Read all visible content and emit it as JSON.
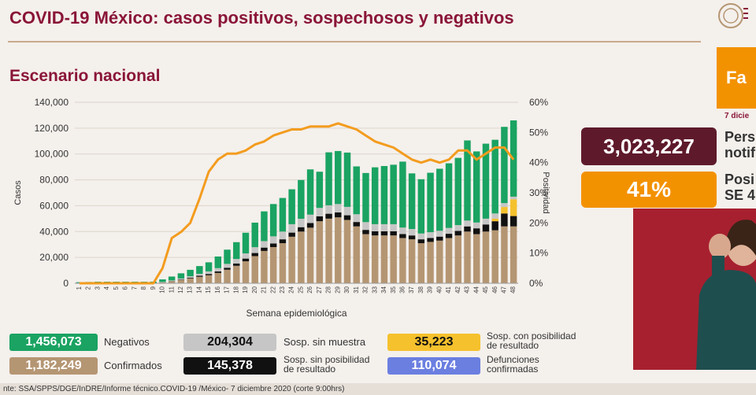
{
  "header": {
    "title": "COVID-19 México: casos positivos, sospechosos y negativos",
    "subtitle": "Escenario nacional"
  },
  "side": {
    "tab_text": "Fa",
    "date_text": "7 dicie",
    "stat_people_value": "3,023,227",
    "stat_people_label_1": "Pers",
    "stat_people_label_2": "notif",
    "stat_positivity_value": "41%",
    "stat_positivity_label_1": "Posi",
    "stat_positivity_label_2": "SE 4"
  },
  "legend": {
    "negativos_value": "1,456,073",
    "negativos_label": "Negativos",
    "confirmados_value": "1,182,249",
    "confirmados_label": "Confirmados",
    "sin_muestra_value": "204,304",
    "sin_muestra_label": "Sosp. sin muestra",
    "sin_posibilidad_value": "145,378",
    "sin_posibilidad_label_1": "Sosp. sin posibilidad",
    "sin_posibilidad_label_2": "de resultado",
    "con_posibilidad_value": "35,223",
    "con_posibilidad_label_1": "Sosp. con posibilidad",
    "con_posibilidad_label_2": "de resultado",
    "defunciones_value": "110,074",
    "defunciones_label_1": "Defunciones",
    "defunciones_label_2": "confirmadas"
  },
  "footer": {
    "source": "nte: SSA/SPPS/DGE/InDRE/Informe técnico.COVID-19 /México- 7 diciembre 2020 (corte 9:00hrs)"
  },
  "colors": {
    "negativos": "#1aa362",
    "confirmados": "#b59673",
    "sin_muestra": "#c6c6c6",
    "sin_posibilidad": "#111111",
    "con_posibilidad": "#f5c12d",
    "defunciones": "#6b7fe0",
    "positividad": "#f39c1e"
  },
  "chart_data": {
    "type": "bar",
    "xlabel": "Semana epidemiológica",
    "ylabel": "Casos",
    "y2label": "Positividad",
    "ylim": [
      0,
      140000
    ],
    "y2lim": [
      0,
      60
    ],
    "yticks": [
      "0",
      "20,000",
      "40,000",
      "60,000",
      "80,000",
      "100,000",
      "120,000",
      "140,000"
    ],
    "y2ticks": [
      "0%",
      "10%",
      "20%",
      "30%",
      "40%",
      "50%",
      "60%"
    ],
    "categories": [
      "1",
      "2",
      "3",
      "4",
      "5",
      "6",
      "7",
      "8",
      "9",
      "10",
      "11",
      "12",
      "13",
      "14",
      "15",
      "16",
      "17",
      "18",
      "19",
      "20",
      "21",
      "22",
      "23",
      "24",
      "25",
      "26",
      "27",
      "28",
      "29",
      "30",
      "31",
      "32",
      "33",
      "34",
      "35",
      "36",
      "37",
      "38",
      "39",
      "40",
      "41",
      "42",
      "43",
      "44",
      "45",
      "46",
      "47",
      "48"
    ],
    "series": [
      {
        "name": "Confirmados",
        "values": [
          0,
          0,
          0,
          0,
          0,
          0,
          0,
          0,
          100,
          600,
          1500,
          2500,
          3800,
          5000,
          6200,
          8000,
          10500,
          13500,
          17000,
          21000,
          25000,
          28000,
          31000,
          36000,
          40000,
          43000,
          48000,
          50000,
          51000,
          49000,
          44000,
          38000,
          37000,
          37000,
          37000,
          35000,
          34000,
          31000,
          32000,
          33000,
          35000,
          37000,
          40000,
          38000,
          40000,
          41000,
          44000,
          44000
        ]
      },
      {
        "name": "Sosp. sin posibilidad de resultado",
        "values": [
          0,
          0,
          0,
          0,
          0,
          0,
          0,
          0,
          50,
          100,
          200,
          400,
          600,
          800,
          1000,
          1200,
          1500,
          1800,
          2100,
          2400,
          2600,
          2800,
          3000,
          3200,
          3400,
          3600,
          3800,
          3800,
          3800,
          3600,
          3400,
          3300,
          3200,
          3200,
          3200,
          3100,
          3000,
          3000,
          3000,
          3100,
          3300,
          3500,
          4000,
          4500,
          5500,
          7000,
          10000,
          8000
        ]
      },
      {
        "name": "Sosp. con posibilidad de resultado",
        "values": [
          0,
          0,
          0,
          0,
          0,
          0,
          0,
          0,
          0,
          0,
          0,
          0,
          0,
          0,
          0,
          0,
          0,
          0,
          0,
          0,
          0,
          0,
          0,
          0,
          0,
          0,
          0,
          0,
          0,
          0,
          0,
          0,
          0,
          0,
          0,
          0,
          0,
          0,
          0,
          0,
          0,
          0,
          0,
          0,
          0,
          2000,
          5000,
          13000
        ]
      },
      {
        "name": "Sosp. sin muestra",
        "values": [
          0,
          0,
          0,
          0,
          0,
          0,
          0,
          0,
          100,
          300,
          500,
          800,
          1000,
          1500,
          2000,
          2500,
          3000,
          3500,
          4000,
          4500,
          5000,
          5500,
          6000,
          6500,
          6500,
          6500,
          6500,
          6500,
          6500,
          6500,
          6000,
          6000,
          5500,
          5500,
          5500,
          5000,
          5000,
          4500,
          4500,
          4500,
          4500,
          4500,
          4500,
          4500,
          4500,
          4000,
          3000,
          2000
        ]
      },
      {
        "name": "Negativos",
        "values": [
          800,
          1000,
          1200,
          1200,
          1200,
          1200,
          1200,
          1200,
          1000,
          2000,
          3000,
          4000,
          5000,
          6000,
          7000,
          9000,
          11000,
          13000,
          16000,
          19000,
          23000,
          25000,
          26000,
          27000,
          30000,
          35000,
          28000,
          41000,
          41000,
          42000,
          37000,
          38000,
          44000,
          45000,
          46000,
          51000,
          43000,
          42000,
          46000,
          48000,
          50000,
          52000,
          62000,
          55000,
          58000,
          57000,
          59000,
          59000
        ]
      }
    ],
    "line": {
      "name": "Positividad",
      "values": [
        0,
        0,
        0,
        0,
        0,
        0,
        0,
        0,
        0,
        5,
        15,
        17,
        20,
        28,
        37,
        41,
        43,
        43,
        44,
        46,
        47,
        49,
        50,
        51,
        51,
        52,
        52,
        52,
        53,
        52,
        51,
        49,
        47,
        46,
        45,
        43,
        41,
        40,
        41,
        40,
        41,
        44,
        44,
        41,
        43,
        45,
        45,
        41
      ]
    }
  }
}
